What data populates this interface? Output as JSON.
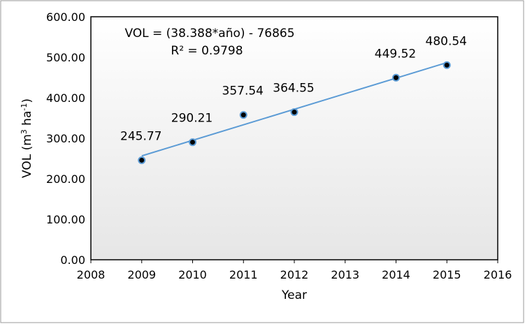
{
  "chart_data": {
    "type": "scatter",
    "title": "",
    "xlabel": "Year",
    "ylabel": "VOL (m³ ha⁻¹)",
    "ylabel_parts": {
      "pre": "VOL (m",
      "sup1": "3",
      "mid": " ha",
      "sup2": "-1",
      "post": ")"
    },
    "xlim": [
      2008,
      2016
    ],
    "ylim": [
      0,
      600
    ],
    "x_ticks": [
      2008,
      2009,
      2010,
      2011,
      2012,
      2013,
      2014,
      2015,
      2016
    ],
    "y_ticks": [
      "0.00",
      "100.00",
      "200.00",
      "300.00",
      "400.00",
      "500.00",
      "600.00"
    ],
    "series": [
      {
        "name": "VOL",
        "x": [
          2009,
          2010,
          2011,
          2012,
          2014,
          2015
        ],
        "y": [
          245.77,
          290.21,
          357.54,
          364.55,
          449.52,
          480.54
        ],
        "labels": [
          "245.77",
          "290.21",
          "357.54",
          "364.55",
          "449.52",
          "480.54"
        ]
      }
    ],
    "trendline": {
      "slope": 38.388,
      "intercept": -76865,
      "x_range": [
        2009,
        2015
      ]
    },
    "annotation": {
      "equation": "VOL = (38.388*año) - 76865",
      "r2": "R² = 0.9798"
    },
    "grid": false,
    "colors": {
      "trend": "#5b9bd5",
      "marker_fill": "#000000",
      "marker_edge": "#5b9bd5"
    }
  }
}
